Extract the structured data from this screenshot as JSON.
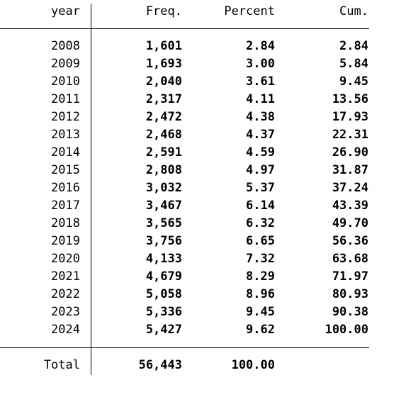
{
  "header": {
    "year": "year",
    "freq": "Freq.",
    "percent": "Percent",
    "cum": "Cum."
  },
  "rows": [
    {
      "year": "2008",
      "freq": "1,601",
      "percent": "2.84",
      "cum": "2.84"
    },
    {
      "year": "2009",
      "freq": "1,693",
      "percent": "3.00",
      "cum": "5.84"
    },
    {
      "year": "2010",
      "freq": "2,040",
      "percent": "3.61",
      "cum": "9.45"
    },
    {
      "year": "2011",
      "freq": "2,317",
      "percent": "4.11",
      "cum": "13.56"
    },
    {
      "year": "2012",
      "freq": "2,472",
      "percent": "4.38",
      "cum": "17.93"
    },
    {
      "year": "2013",
      "freq": "2,468",
      "percent": "4.37",
      "cum": "22.31"
    },
    {
      "year": "2014",
      "freq": "2,591",
      "percent": "4.59",
      "cum": "26.90"
    },
    {
      "year": "2015",
      "freq": "2,808",
      "percent": "4.97",
      "cum": "31.87"
    },
    {
      "year": "2016",
      "freq": "3,032",
      "percent": "5.37",
      "cum": "37.24"
    },
    {
      "year": "2017",
      "freq": "3,467",
      "percent": "6.14",
      "cum": "43.39"
    },
    {
      "year": "2018",
      "freq": "3,565",
      "percent": "6.32",
      "cum": "49.70"
    },
    {
      "year": "2019",
      "freq": "3,756",
      "percent": "6.65",
      "cum": "56.36"
    },
    {
      "year": "2020",
      "freq": "4,133",
      "percent": "7.32",
      "cum": "63.68"
    },
    {
      "year": "2021",
      "freq": "4,679",
      "percent": "8.29",
      "cum": "71.97"
    },
    {
      "year": "2022",
      "freq": "5,058",
      "percent": "8.96",
      "cum": "80.93"
    },
    {
      "year": "2023",
      "freq": "5,336",
      "percent": "9.45",
      "cum": "90.38"
    },
    {
      "year": "2024",
      "freq": "5,427",
      "percent": "9.62",
      "cum": "100.00"
    }
  ],
  "total": {
    "label": "Total",
    "freq": "56,443",
    "percent": "100.00"
  }
}
